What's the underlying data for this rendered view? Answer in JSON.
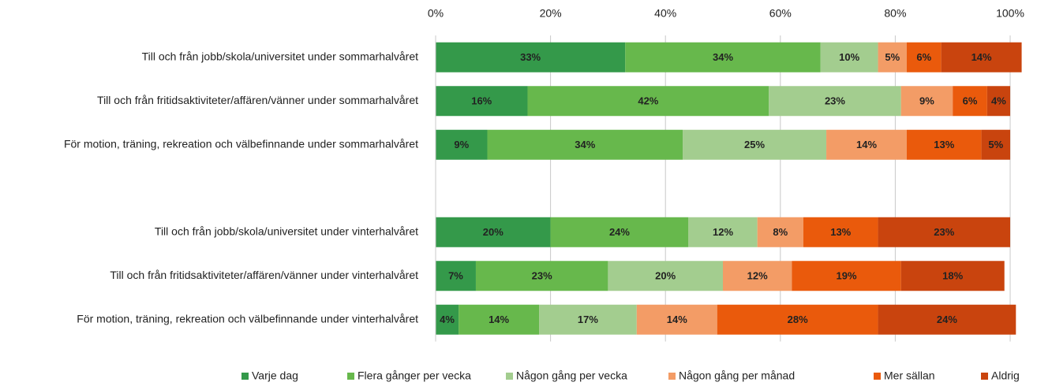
{
  "chart_data": {
    "type": "stacked_barh",
    "categories": [
      "Till och från jobb/skola/universitet under sommarhalvåret",
      "Till och från fritidsaktiviteter/affären/vänner under sommarhalvåret",
      "För motion, träning, rekreation och välbefinnande under sommarhalvåret",
      null,
      "Till och från jobb/skola/universitet under vinterhalvåret",
      "Till och från fritidsaktiviteter/affären/vänner under vinterhalvåret",
      "För motion, träning, rekreation och välbefinnande under vinterhalvåret"
    ],
    "series": [
      {
        "name": "Varje dag",
        "color": "#34994a",
        "values": [
          33,
          16,
          9,
          null,
          20,
          7,
          4
        ],
        "value_labels": [
          "33%",
          "16%",
          "9%",
          null,
          "20%",
          "7%",
          "4%"
        ]
      },
      {
        "name": "Flera gånger per vecka",
        "color": "#67b84c",
        "values": [
          34,
          42,
          34,
          null,
          24,
          23,
          14
        ],
        "value_labels": [
          "34%",
          "42%",
          "34%",
          null,
          "24%",
          "23%",
          "14%"
        ]
      },
      {
        "name": "Någon gång per vecka",
        "color": "#a3cd8f",
        "values": [
          10,
          23,
          25,
          null,
          12,
          20,
          17
        ],
        "value_labels": [
          "10%",
          "23%",
          "25%",
          null,
          "12%",
          "20%",
          "17%"
        ]
      },
      {
        "name": "Någon gång per månad",
        "color": "#f39c66",
        "values": [
          5,
          9,
          14,
          null,
          8,
          12,
          14
        ],
        "value_labels": [
          "5%",
          "9%",
          "14%",
          null,
          "8%",
          "12%",
          "14%"
        ]
      },
      {
        "name": "Mer sällan",
        "color": "#ea5a0c",
        "values": [
          6,
          6,
          13,
          null,
          13,
          19,
          28
        ],
        "value_labels": [
          "6%",
          "6%",
          "13%",
          null,
          "13%",
          "19%",
          "28%"
        ]
      },
      {
        "name": "Aldrig",
        "color": "#c9440e",
        "values": [
          14,
          4,
          5,
          null,
          23,
          18,
          24
        ],
        "value_labels": [
          "14%",
          "4%",
          "5%",
          null,
          "23%",
          "18%",
          "24%"
        ]
      }
    ],
    "xlim": [
      0,
      100
    ],
    "xticks": [
      {
        "value": 0,
        "label": "0%"
      },
      {
        "value": 20,
        "label": "20%"
      },
      {
        "value": 40,
        "label": "40%"
      },
      {
        "value": 60,
        "label": "60%"
      },
      {
        "value": 80,
        "label": "80%"
      },
      {
        "value": 100,
        "label": "100%"
      }
    ],
    "grid": true,
    "legend": "bottom"
  }
}
